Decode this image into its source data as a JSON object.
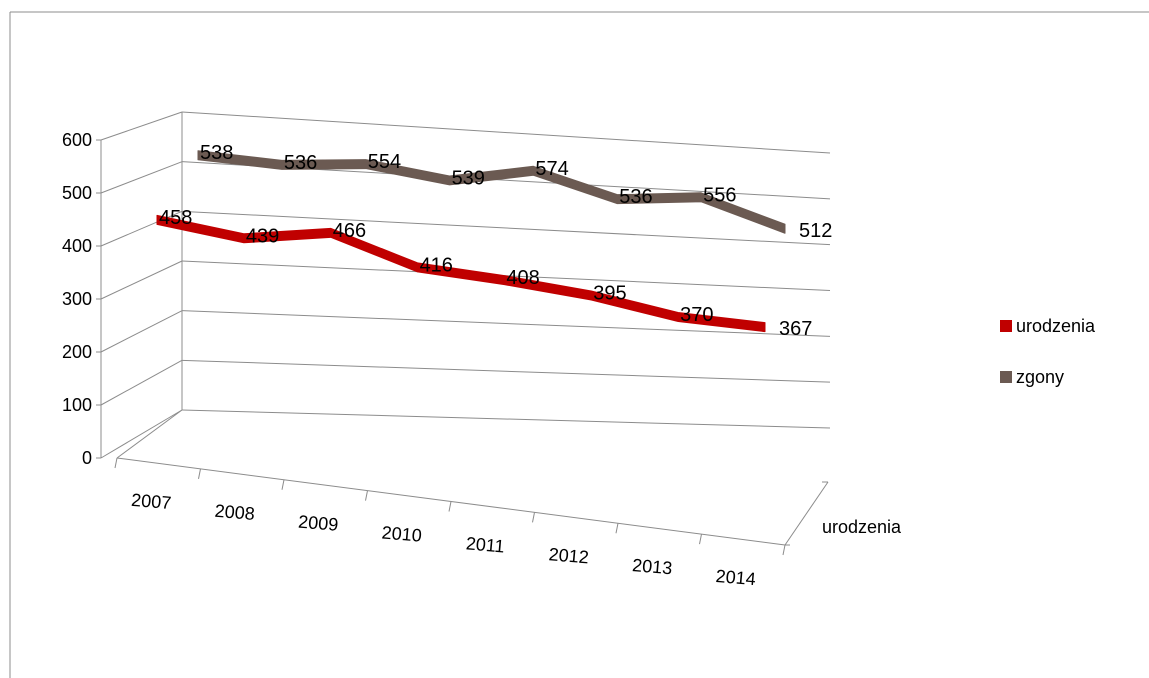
{
  "chart_data": {
    "type": "line",
    "categories": [
      "2007",
      "2008",
      "2009",
      "2010",
      "2011",
      "2012",
      "2013",
      "2014"
    ],
    "series": [
      {
        "name": "urodzenia",
        "values": [
          458,
          439,
          466,
          416,
          408,
          395,
          370,
          367
        ],
        "color": "#C00000"
      },
      {
        "name": "zgony",
        "values": [
          538,
          536,
          554,
          539,
          574,
          536,
          556,
          512
        ],
        "color": "#6B5A52"
      }
    ],
    "y_ticks": [
      "0",
      "100",
      "200",
      "300",
      "400",
      "500",
      "600"
    ],
    "ylim": [
      0,
      600
    ],
    "depth_axis_label": "urodzenia",
    "legend_position": "right",
    "grid": true,
    "style": "3d-line"
  }
}
